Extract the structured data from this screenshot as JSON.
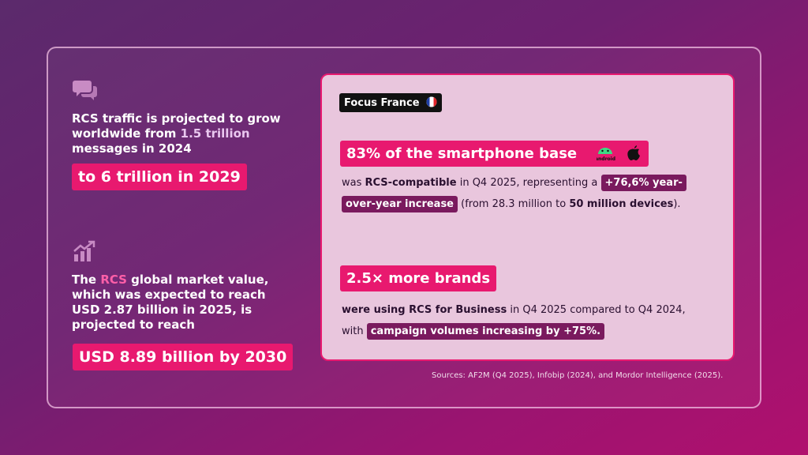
{
  "left": [
    {
      "text": {
        "before": "RCS traffic is projected to grow worldwide from ",
        "accent": "1.5 trillion",
        "after": " messages in 2024"
      },
      "highlight": "to 6 trillion in 2029"
    },
    {
      "text": {
        "before": "The ",
        "accent": "RCS",
        "after": " global market value, which was expected to reach USD 2.87 billion in 2025, is projected to reach"
      },
      "highlight": "USD 8.89 billion by 2030"
    }
  ],
  "panel": {
    "badge": "Focus France",
    "blocks": [
      {
        "heading": "83% of the smartphone base",
        "icon_label": "android",
        "body": [
          "was ",
          "RCS-compatible",
          " in Q4 2025, representing a ",
          "+76,6% year-over-year increase",
          " (from 28.3 million to ",
          "50 million devices",
          ")."
        ]
      },
      {
        "heading": "2.5× more brands",
        "body": [
          "were using RCS for Business",
          " in Q4 2025 compared to Q4 2024, with ",
          "campaign volumes increasing by +75%."
        ]
      }
    ]
  },
  "sources": "Sources: AF2M (Q4 2025), Infobip (2024), and Mordor Intelligence (2025)."
}
